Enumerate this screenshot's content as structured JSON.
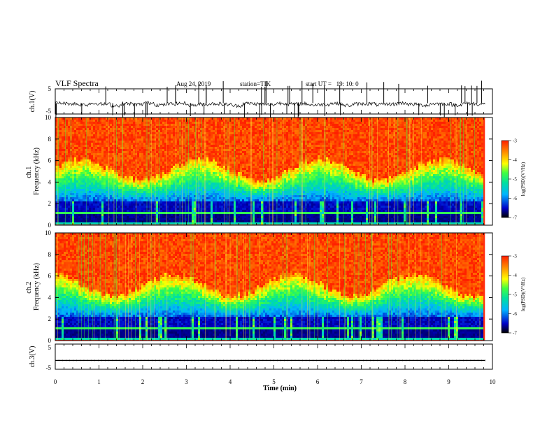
{
  "header": {
    "title": "VLF Spectra",
    "date": "Aug 24, 2019",
    "station": "station=TIK",
    "start_time": "start UT =   19: 10: 0"
  },
  "chart_data": [
    {
      "type": "line",
      "panel": "ch1_waveform",
      "ylabel": "ch.1(V)",
      "ylim": [
        -5,
        5
      ],
      "yticks": [
        "5",
        "-5"
      ],
      "series": [
        {
          "values": [
            -0.7,
            -0.9,
            -1.3,
            -0.8,
            -1.1,
            -1.6,
            -0.9,
            -1.2,
            -0.6,
            -1.4,
            -1.0,
            -0.8,
            -1.5,
            -1.1,
            -0.9,
            -1.2,
            -1.7,
            -0.8,
            -1.0,
            -1.3,
            -0.7,
            -1.1,
            -0.9,
            -1.4,
            -1.2,
            -0.8,
            -1.6,
            -1.0,
            -0.9,
            -1.3,
            -1.1,
            -0.7,
            -1.2,
            -1.5,
            -0.9,
            -1.0,
            -1.4,
            -0.8,
            -1.1,
            -1.3
          ]
        }
      ]
    },
    {
      "type": "heatmap",
      "panel": "ch1_spectrogram",
      "ylabel": "ch.1\nFrequency (kHz)",
      "ylim": [
        0,
        10
      ],
      "yticks": [
        "0",
        "2",
        "4",
        "6",
        "8",
        "10"
      ],
      "colorbar": {
        "label": "log(PSD)(V²/Hz)",
        "ticks": [
          "-3",
          "-4",
          "-5",
          "-6",
          "-7"
        ],
        "range": [
          -7,
          -3
        ]
      }
    },
    {
      "type": "heatmap",
      "panel": "ch2_spectrogram",
      "ylabel": "ch.2\nFrequency (kHz)",
      "ylim": [
        0,
        10
      ],
      "yticks": [
        "0",
        "2",
        "4",
        "6",
        "8",
        "10"
      ],
      "colorbar": {
        "label": "log(PSD)(V²/Hz)",
        "ticks": [
          "-3",
          "-4",
          "-5",
          "-6",
          "-7"
        ],
        "range": [
          -7,
          -3
        ]
      }
    },
    {
      "type": "line",
      "panel": "ch3_waveform",
      "ylabel": "ch.3(V)",
      "ylim": [
        -5,
        5
      ],
      "yticks": [
        "5",
        "-5"
      ],
      "series": [
        {
          "values": [
            -1.5,
            -1.5,
            -1.5,
            -1.5,
            -1.5,
            -1.5,
            -1.5,
            -1.5,
            -1.5,
            -1.5,
            -1.5,
            -1.5,
            -1.5,
            -1.5,
            -1.5,
            -1.5,
            -1.5,
            -1.5,
            -1.5,
            -1.5,
            -1.5
          ]
        }
      ]
    }
  ],
  "xaxis": {
    "label": "Time (min)",
    "xlim": [
      0,
      10
    ],
    "ticks": [
      "0",
      "1",
      "2",
      "3",
      "4",
      "5",
      "6",
      "7",
      "8",
      "9",
      "10"
    ],
    "data_end": 9.83
  },
  "colors": {
    "colormap": [
      "#000033",
      "#0000c8",
      "#00b4ff",
      "#00e0a0",
      "#40ff40",
      "#ffff00",
      "#ff8c00",
      "#ff2000"
    ]
  }
}
